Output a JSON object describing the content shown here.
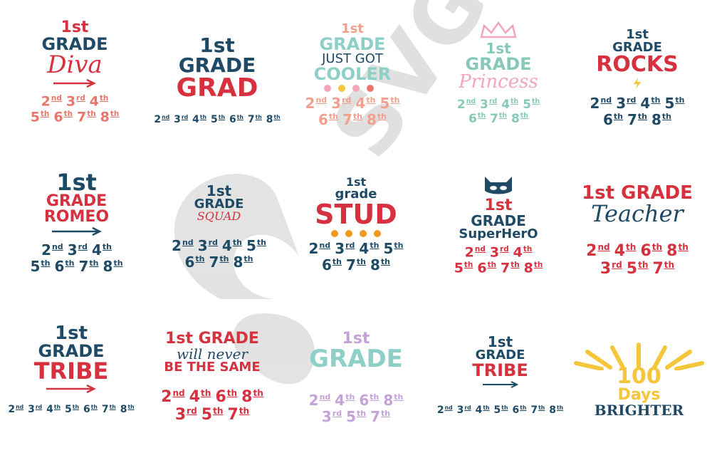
{
  "colors": {
    "navy": "#1f4a66",
    "red": "#d6313f",
    "coral": "#e8776b",
    "peach": "#f0a08c",
    "teal": "#8ed0c8",
    "mint": "#87c9b8",
    "pink": "#f2a6b8",
    "orange": "#f09a1c",
    "yellow": "#f5c53a",
    "lilac": "#c4a2d8",
    "watermark": "#d9d9d9"
  },
  "watermark": {
    "text": "SVG CHEF"
  },
  "designs": [
    {
      "id": "diva",
      "lines": [
        "1st",
        "GRADE",
        "Diva"
      ],
      "grades_rows": [
        [
          "2nd",
          "3rd",
          "4th"
        ],
        [
          "5th",
          "6th",
          "7th",
          "8th"
        ]
      ]
    },
    {
      "id": "grad",
      "lines": [
        "1st",
        "GRADE",
        "GRAD"
      ],
      "grades_rows": [
        [
          "2nd",
          "3rd",
          "4th",
          "5th",
          "6th",
          "7th",
          "8th"
        ]
      ]
    },
    {
      "id": "cooler",
      "lines": [
        "1st",
        "GRADE",
        "JUST GOT",
        "COOLER"
      ],
      "grades_rows": [
        [
          "2nd",
          "3rd",
          "4th",
          "5th"
        ],
        [
          "6th",
          "7th",
          "8th"
        ]
      ]
    },
    {
      "id": "princess",
      "lines": [
        "1st",
        "GRADE",
        "Princess"
      ],
      "grades_rows": [
        [
          "2nd",
          "3rd",
          "4th",
          "5th"
        ],
        [
          "6th",
          "7th",
          "8th"
        ]
      ]
    },
    {
      "id": "rocks",
      "lines": [
        "1st",
        "GRADE",
        "ROCKS"
      ],
      "grades_rows": [
        [
          "2nd",
          "3rd",
          "4th",
          "5th"
        ],
        [
          "6th",
          "7th",
          "8th"
        ]
      ]
    },
    {
      "id": "romeo",
      "lines": [
        "1st",
        "GRADE",
        "ROMEO"
      ],
      "grades_rows": [
        [
          "2nd",
          "3rd",
          "4th"
        ],
        [
          "5th",
          "6th",
          "7th",
          "8th"
        ]
      ]
    },
    {
      "id": "squad",
      "lines": [
        "1st",
        "GRADE",
        "SQUAD"
      ],
      "grades_rows": [
        [
          "2nd",
          "3rd",
          "4th",
          "5th"
        ],
        [
          "6th",
          "7th",
          "8th"
        ]
      ]
    },
    {
      "id": "stud",
      "lines": [
        "1st",
        "grade",
        "STUD"
      ],
      "grades_rows": [
        [
          "2nd",
          "3rd",
          "4th",
          "5th"
        ],
        [
          "6th",
          "7th",
          "8th"
        ]
      ]
    },
    {
      "id": "superhero",
      "lines": [
        "1st",
        "GRADE",
        "SuperHerO"
      ],
      "grades_rows": [
        [
          "2nd",
          "3rd",
          "4th"
        ],
        [
          "5th",
          "6th",
          "7th",
          "8th"
        ]
      ]
    },
    {
      "id": "teacher",
      "lines": [
        "1st GRADE",
        "Teacher"
      ],
      "grades_rows": [
        [
          "2nd",
          "4th",
          "6th",
          "8th"
        ],
        [
          "3rd",
          "5th",
          "7th"
        ]
      ]
    },
    {
      "id": "tribe",
      "lines": [
        "1st",
        "GRADE",
        "TRIBE"
      ],
      "grades_rows": [
        [
          "2nd",
          "3rd",
          "4th",
          "5th",
          "6th",
          "7th",
          "8th"
        ]
      ]
    },
    {
      "id": "never_same",
      "lines": [
        "1st GRADE",
        "will never",
        "BE THE SAME"
      ],
      "grades_rows": [
        [
          "2nd",
          "4th",
          "6th",
          "8th"
        ],
        [
          "3rd",
          "5th",
          "7th"
        ]
      ]
    },
    {
      "id": "colorful",
      "lines": [
        "1st",
        "GRADE"
      ],
      "grades_rows": [
        [
          "2nd",
          "4th",
          "6th",
          "8th"
        ],
        [
          "3rd",
          "5th",
          "7th"
        ]
      ]
    },
    {
      "id": "tribe_small",
      "lines": [
        "1st",
        "GRADE",
        "TRIBE"
      ],
      "grades_rows": [
        [
          "2nd",
          "3rd",
          "4th",
          "5th",
          "6th",
          "7th",
          "8th"
        ]
      ]
    },
    {
      "id": "brighter",
      "lines": [
        "100",
        "Days",
        "BRIGHTER"
      ],
      "grades_rows": []
    }
  ]
}
